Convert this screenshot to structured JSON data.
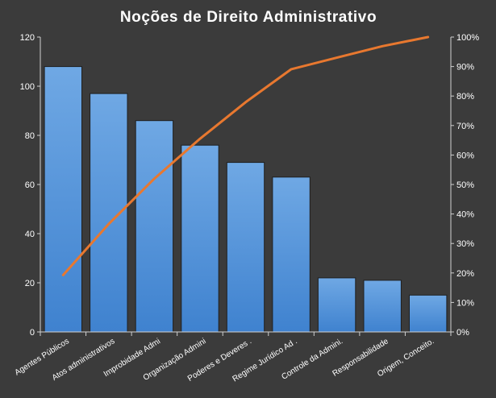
{
  "chart_data": {
    "type": "bar",
    "title": "Noções de Direito Administrativo",
    "categories": [
      "Agentes Públicos",
      "Atos administrativos",
      "Improbidade Admi",
      "Organização Admini",
      "Poderes e Deveres .",
      "Regime Jurídico Ad .",
      "Controle da Admini.",
      "Responsabilidade",
      "Origem, Conceito."
    ],
    "series": [
      {
        "type": "bar",
        "values": [
          108,
          97,
          86,
          76,
          69,
          63,
          22,
          21,
          15
        ],
        "color": "#4d90d6"
      },
      {
        "type": "line",
        "axis": "right",
        "values": [
          19.3,
          36.6,
          52.0,
          65.5,
          77.9,
          89.1,
          93.0,
          96.9,
          100
        ],
        "color": "#e8782f"
      }
    ],
    "yaxis_left": {
      "min": 0,
      "max": 120,
      "step": 20,
      "ticks": [
        "0",
        "20",
        "40",
        "60",
        "80",
        "100",
        "120"
      ]
    },
    "yaxis_right": {
      "min": 0,
      "max": 100,
      "step": 10,
      "ticks": [
        "0%",
        "10%",
        "20%",
        "30%",
        "40%",
        "50%",
        "60%",
        "70%",
        "80%",
        "90%",
        "100%"
      ]
    },
    "grid": false,
    "legend": "none",
    "colors": {
      "background": "#3b3b3b",
      "text": "#ffffff",
      "axis": "#d0d0d0"
    }
  }
}
